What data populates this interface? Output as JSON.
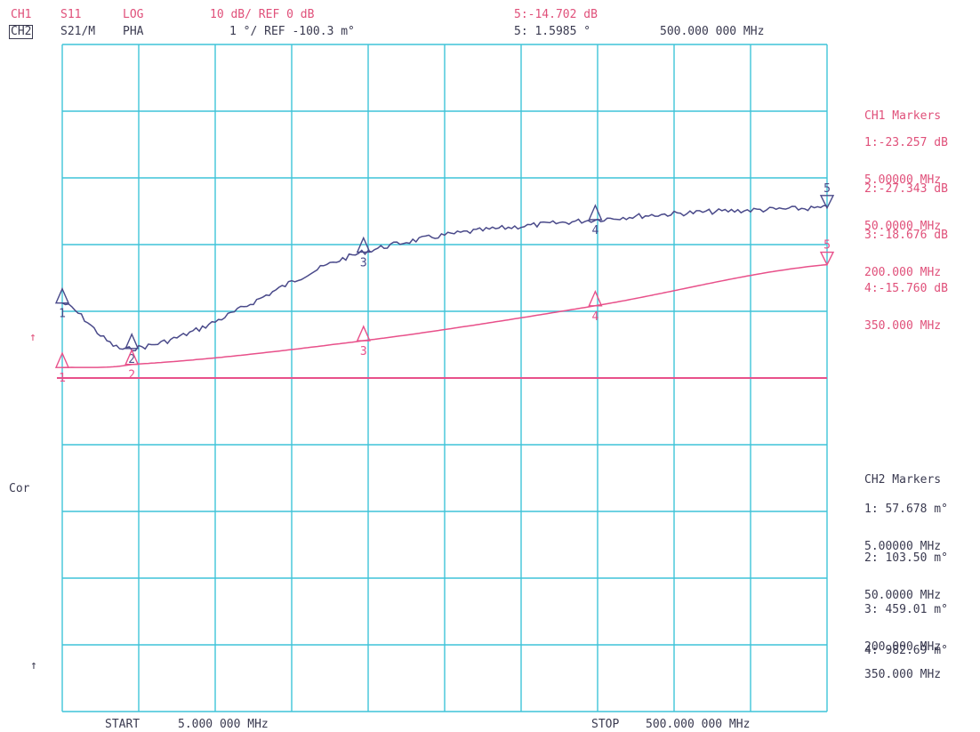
{
  "header": {
    "ch1_label": "CH1",
    "ch1_param": "S11",
    "ch1_format": "LOG",
    "ch1_scale": "10 dB/ REF 0 dB",
    "ch1_active_marker": "5:-14.702 dB",
    "ch2_label": "CH2",
    "ch2_param": "S21/M",
    "ch2_format": "PHA",
    "ch2_scale": "1 °/ REF -100.3 m°",
    "ch2_active_marker": "5: 1.5985 °",
    "marker_freq": "500.000 000 MHz"
  },
  "footer": {
    "start_label": "START",
    "start_value": "5.000 000 MHz",
    "stop_label": "STOP",
    "stop_value": "500.000 000 MHz"
  },
  "left_annotations": {
    "ch1_ref_arrow": "↑",
    "correction": "Cor",
    "ch2_ref_arrow": "↑"
  },
  "ch1_markers": {
    "title": "CH1 Markers",
    "items": [
      {
        "value": "1:-23.257 dB",
        "freq": "5.00000 MHz"
      },
      {
        "value": "2:-27.343 dB",
        "freq": "50.0000 MHz"
      },
      {
        "value": "3:-18.676 dB",
        "freq": "200.000 MHz"
      },
      {
        "value": "4:-15.760 dB",
        "freq": "350.000 MHz"
      }
    ]
  },
  "ch2_markers": {
    "title": "CH2 Markers",
    "items": [
      {
        "value": "1: 57.678 m°",
        "freq": "5.00000 MHz"
      },
      {
        "value": "2: 103.50 m°",
        "freq": "50.0000 MHz"
      },
      {
        "value": "3: 459.01 m°",
        "freq": "200.000 MHz"
      },
      {
        "value": "4: 982.69 m°",
        "freq": "350.000 MHz"
      }
    ]
  },
  "colors": {
    "grid": "#3fc4d8",
    "ch1": "#4a4a8a",
    "ch2": "#e8508a",
    "text_pink": "#e0507a",
    "text_dark": "#3a3a50"
  },
  "chart_data": [
    {
      "type": "line",
      "channel": "CH1",
      "series": [
        {
          "name": "S11",
          "x": [
            5,
            50,
            200,
            350,
            500
          ],
          "y": [
            -23.257,
            -27.343,
            -18.676,
            -15.76,
            -14.702
          ]
        }
      ],
      "marker_labels": [
        "1",
        "2",
        "3",
        "4",
        "5"
      ],
      "xlim": [
        5,
        500
      ],
      "ylim": [
        -60,
        0
      ],
      "grid": true
    },
    {
      "type": "line",
      "channel": "CH2",
      "series": [
        {
          "name": "S21/M",
          "x": [
            5,
            50,
            200,
            350,
            500
          ],
          "y": [
            0.057678,
            0.1035,
            0.45901,
            0.98269,
            1.5985
          ]
        }
      ],
      "marker_labels": [
        "1",
        "2",
        "3",
        "4",
        "5"
      ],
      "xlim": [
        5,
        500
      ],
      "ylim": [
        -5.1003,
        4.8997
      ],
      "grid": true
    }
  ]
}
